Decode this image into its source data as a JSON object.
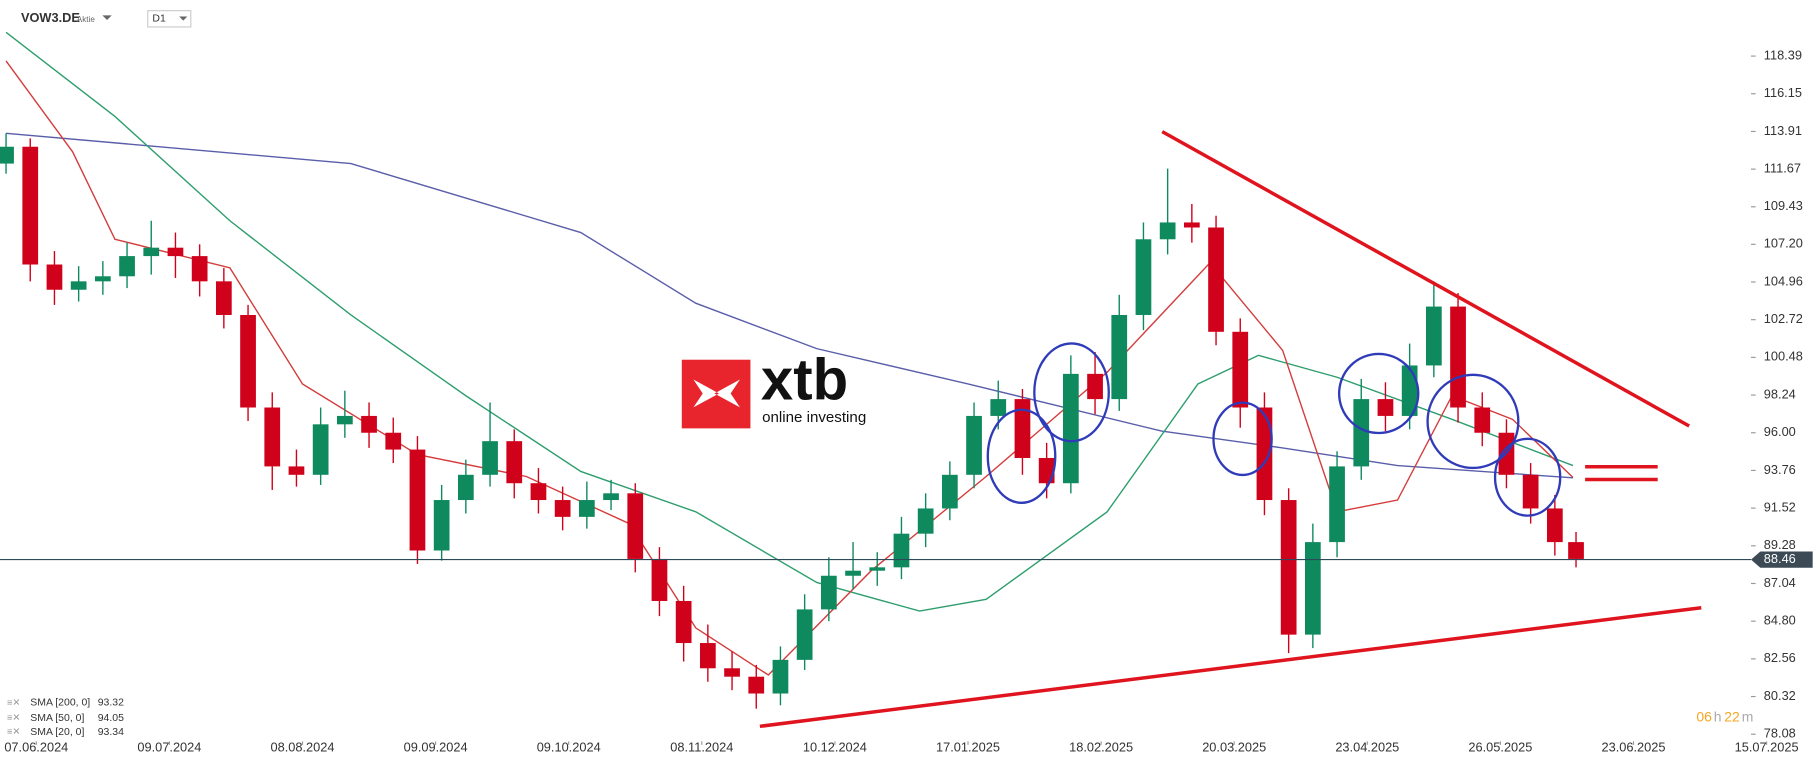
{
  "chart_data": {
    "type": "candlestick",
    "symbol": "VOW3.DE",
    "instrument_type": "Aktie",
    "timeframe": "D1",
    "watermark": {
      "brand": "xtb",
      "tagline": "online investing"
    },
    "timer": [
      "06",
      "h",
      "22",
      "m"
    ],
    "xlim": [
      0,
      300
    ],
    "xticks": [
      {
        "value": 6,
        "label": "07.06.2024"
      },
      {
        "value": 28,
        "label": "09.07.2024"
      },
      {
        "value": 50,
        "label": "08.08.2024"
      },
      {
        "value": 72,
        "label": "09.09.2024"
      },
      {
        "value": 94,
        "label": "09.10.2024"
      },
      {
        "value": 116,
        "label": "08.11.2024"
      },
      {
        "value": 138,
        "label": "10.12.2024"
      },
      {
        "value": 160,
        "label": "17.01.2025"
      },
      {
        "value": 182,
        "label": "18.02.2025"
      },
      {
        "value": 204,
        "label": "20.03.2025"
      },
      {
        "value": 226,
        "label": "23.04.2025"
      },
      {
        "value": 248,
        "label": "26.05.2025"
      },
      {
        "value": 270,
        "label": "23.06.2025"
      },
      {
        "value": 292,
        "label": "15.07.2025"
      }
    ],
    "ylim": [
      77.45,
      121.71
    ],
    "yticks": [
      78.08,
      80.32,
      82.56,
      {
        "value": 84.8,
        "label": "84.80"
      },
      87.04,
      89.28,
      91.52,
      93.76,
      {
        "value": 96,
        "label": "96.00"
      },
      98.24,
      100.48,
      102.72,
      104.96,
      {
        "value": 107.2,
        "label": "107.20"
      },
      109.43,
      111.67,
      113.91,
      116.15,
      118.39
    ],
    "last_price": 88.46,
    "up_color": "#0f8a5f",
    "down_color": "#d0021b",
    "candles": {
      "x": [
        1,
        5,
        9,
        13,
        17,
        21,
        25,
        29,
        33,
        37,
        41,
        45,
        49,
        53,
        57,
        61,
        65,
        69,
        73,
        77,
        81,
        85,
        89,
        93,
        97,
        101,
        105,
        109,
        113,
        117,
        121,
        125,
        129,
        133,
        137,
        141,
        145,
        149,
        153,
        157,
        161,
        165,
        169,
        173,
        177,
        181,
        185,
        189,
        193,
        197,
        201,
        205,
        209,
        213,
        217,
        221,
        225,
        229,
        233,
        237,
        241,
        245,
        249,
        253,
        257,
        260.5
      ],
      "open": [
        112,
        113,
        106,
        104.5,
        105,
        105.3,
        106.5,
        107,
        106.5,
        105,
        103,
        97.5,
        94,
        93.5,
        96.5,
        97,
        96,
        95,
        89,
        92,
        93.5,
        95.5,
        93,
        92,
        91,
        92,
        92.4,
        88.5,
        86,
        83.5,
        82,
        81.5,
        80.5,
        82.5,
        85.5,
        87.5,
        87.8,
        88,
        90,
        91.5,
        93.5,
        97,
        98,
        94.5,
        93,
        99.5,
        98,
        103,
        107.5,
        108.5,
        108.2,
        102,
        97.5,
        92,
        84,
        89.5,
        94,
        98,
        97,
        100,
        103.5,
        97.5,
        96,
        93.5,
        91.5,
        89.5
      ],
      "high": [
        113.8,
        113.5,
        106.8,
        105.9,
        106.2,
        107.3,
        108.6,
        107.9,
        107.2,
        105.8,
        103.6,
        98.4,
        95,
        97.5,
        98.5,
        97.8,
        96.9,
        95.8,
        92.9,
        94.4,
        97.8,
        96.2,
        93.9,
        92.8,
        93.1,
        93.2,
        93,
        89.2,
        86.9,
        84.6,
        83,
        82.2,
        83.3,
        86.4,
        88.6,
        89.5,
        88.9,
        91,
        92.4,
        94.3,
        97.8,
        99.1,
        98.6,
        95.4,
        100.6,
        100.8,
        104.2,
        108.5,
        111.7,
        109.6,
        108.9,
        102.8,
        98.4,
        92.7,
        90.6,
        94.9,
        99.2,
        99,
        101.3,
        105,
        104.3,
        98.4,
        96.8,
        94.2,
        92.3,
        90.1
      ],
      "low": [
        111.4,
        105,
        103.6,
        103.8,
        104.2,
        104.6,
        105.4,
        105.2,
        104.1,
        102.2,
        96.7,
        92.6,
        92.8,
        92.9,
        95.7,
        95.1,
        94.2,
        88.2,
        88.4,
        91.2,
        92.8,
        92.1,
        91.2,
        90.2,
        90.3,
        91.4,
        87.7,
        85.1,
        82.4,
        81.2,
        80.7,
        79.6,
        79.8,
        81.9,
        84.8,
        86.7,
        86.9,
        87.3,
        89.2,
        90.8,
        92.7,
        96.2,
        93.5,
        92.1,
        92.4,
        97.1,
        97.3,
        102.1,
        106.6,
        107.3,
        101.2,
        96.3,
        91.1,
        82.9,
        83.2,
        88.6,
        93.2,
        96.1,
        96.2,
        99.3,
        96.6,
        95.2,
        92.7,
        90.6,
        88.7,
        88
      ],
      "close": [
        113,
        106,
        104.5,
        105,
        105.3,
        106.5,
        107,
        106.5,
        105,
        103,
        97.5,
        94,
        93.5,
        96.5,
        97,
        96,
        95,
        89,
        92,
        93.5,
        95.5,
        93,
        92,
        91,
        92,
        92.4,
        88.5,
        86,
        83.5,
        82,
        81.5,
        80.5,
        82.5,
        85.5,
        87.5,
        87.8,
        88,
        90,
        91.5,
        93.5,
        97,
        98,
        94.5,
        93,
        99.5,
        98,
        103,
        107.5,
        108.5,
        108.2,
        102,
        97.5,
        92,
        84,
        89.5,
        94,
        98,
        97,
        100,
        103.5,
        97.5,
        96,
        93.5,
        91.5,
        89.5,
        88.5
      ]
    },
    "series": [
      {
        "name": "SMA [200, 0]",
        "color": "#5a5eaa",
        "x": [
          1,
          58,
          96,
          115,
          135,
          160,
          192,
          212,
          231,
          260
        ],
        "values": [
          113.8,
          112.0,
          107.9,
          103.7,
          101,
          98.9,
          96.1,
          95.1,
          94.05,
          93.32
        ]
      },
      {
        "name": "SMA [50, 0]",
        "color": "#2e9e6e",
        "x": [
          1,
          19,
          38,
          58,
          77,
          96,
          115,
          135,
          152,
          163,
          183,
          198,
          208,
          221,
          240,
          260
        ],
        "values": [
          119.8,
          114.8,
          108.6,
          103.0,
          98.2,
          93.7,
          91.3,
          87.1,
          85.4,
          86.1,
          91.3,
          98.9,
          100.6,
          99.3,
          96.8,
          94.05
        ]
      },
      {
        "name": "SMA [20, 0]",
        "color": "#d43c3c",
        "x": [
          1,
          12,
          19,
          38,
          50,
          69,
          87,
          104,
          115,
          127,
          144,
          163,
          183,
          200,
          212,
          221,
          231,
          240,
          250,
          260
        ],
        "values": [
          118.1,
          112.7,
          107.5,
          105.8,
          98.9,
          94.7,
          93.4,
          90.6,
          84.4,
          81.6,
          87.8,
          93.4,
          99.6,
          106.1,
          100.9,
          91.3,
          92.0,
          98.2,
          96.8,
          93.34
        ]
      }
    ],
    "trendlines": [
      {
        "x": [
          192.1,
          279.2
        ],
        "y": [
          113.9,
          96.4
        ]
      },
      {
        "x": [
          125.6,
          281.2
        ],
        "y": [
          78.55,
          85.6
        ]
      },
      {
        "x": [
          262,
          274
        ],
        "y": [
          93.98,
          93.98
        ]
      },
      {
        "x": [
          262,
          274
        ],
        "y": [
          93.22,
          93.22
        ]
      }
    ],
    "trendline_color": "#e0141e"
  }
}
